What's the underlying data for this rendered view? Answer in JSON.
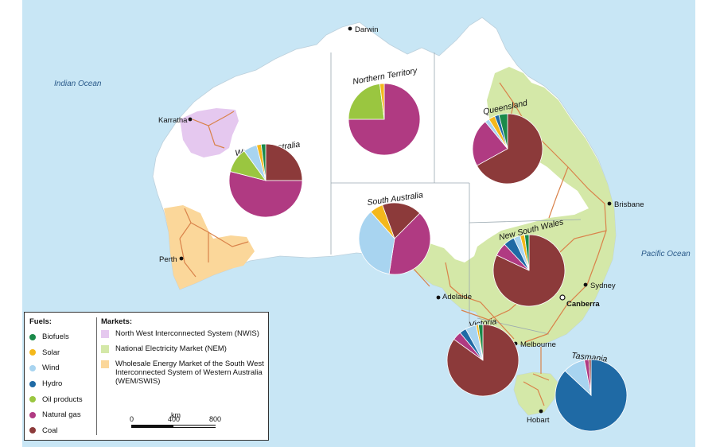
{
  "oceans": {
    "indian": "Indian Ocean",
    "pacific": "Pacific Ocean"
  },
  "cities": {
    "darwin": "Darwin",
    "karratha": "Karratha",
    "perth": "Perth",
    "adelaide": "Adelaide",
    "melbourne": "Melbourne",
    "hobart": "Hobart",
    "sydney": "Sydney",
    "canberra": "Canberra",
    "brisbane": "Brisbane"
  },
  "regions": {
    "wa": "Western Australia",
    "nt": "Northern Territory",
    "qld": "Queensland",
    "sa": "South Australia",
    "nsw": "New South Wales",
    "vic": "Victoria",
    "tas": "Tasmania"
  },
  "colors": {
    "ocean": "#c8e6f5",
    "land": "#ffffff",
    "nem": "#d4e8a8",
    "nwis": "#e5c8ef",
    "wem": "#fbd79a",
    "lines": "#d9824a"
  },
  "legend": {
    "fuels_title": "Fuels:",
    "markets_title": "Markets:",
    "fuels": [
      {
        "label": "Biofuels",
        "color": "#1a8a4a"
      },
      {
        "label": "Solar",
        "color": "#f4b81c"
      },
      {
        "label": "Wind",
        "color": "#a8d4f0"
      },
      {
        "label": "Hydro",
        "color": "#1f6aa5"
      },
      {
        "label": "Oil products",
        "color": "#9ac640"
      },
      {
        "label": "Natural gas",
        "color": "#b03a82"
      },
      {
        "label": "Coal",
        "color": "#8c3a3a"
      }
    ],
    "markets": [
      {
        "label": "North West Interconnected System (NWIS)",
        "color": "#e5c8ef"
      },
      {
        "label": "National Electricity Market (NEM)",
        "color": "#d4e8a8"
      },
      {
        "label": "Wholesale Energy Market of the South West Interconnected System of Western Australia (WEM/SWIS)",
        "color": "#fbd79a"
      }
    ],
    "scale": {
      "unit": "km",
      "ticks": [
        "0",
        "400",
        "800"
      ]
    }
  },
  "chart_data": [
    {
      "type": "pie",
      "title": "Western Australia",
      "categories": [
        "Coal",
        "Natural gas",
        "Oil products",
        "Wind",
        "Solar",
        "Biofuels"
      ],
      "values": [
        25,
        54,
        11,
        6,
        2,
        2
      ]
    },
    {
      "type": "pie",
      "title": "Northern Territory",
      "categories": [
        "Natural gas",
        "Oil products",
        "Solar"
      ],
      "values": [
        75,
        23,
        2
      ]
    },
    {
      "type": "pie",
      "title": "Queensland",
      "categories": [
        "Coal",
        "Natural gas",
        "Wind",
        "Solar",
        "Hydro",
        "Biofuels"
      ],
      "values": [
        67,
        22,
        2,
        3,
        2,
        4
      ]
    },
    {
      "type": "pie",
      "title": "South Australia",
      "categories": [
        "Coal",
        "Natural gas",
        "Wind",
        "Solar"
      ],
      "values": [
        18,
        40,
        36,
        6
      ]
    },
    {
      "type": "pie",
      "title": "New South Wales",
      "categories": [
        "Coal",
        "Natural gas",
        "Hydro",
        "Wind",
        "Solar",
        "Biofuels"
      ],
      "values": [
        82,
        6,
        5,
        3,
        2,
        2
      ]
    },
    {
      "type": "pie",
      "title": "Victoria",
      "categories": [
        "Coal",
        "Natural gas",
        "Hydro",
        "Wind",
        "Solar",
        "Biofuels"
      ],
      "values": [
        85,
        4,
        3,
        5,
        1,
        2
      ]
    },
    {
      "type": "pie",
      "title": "Tasmania",
      "categories": [
        "Hydro",
        "Wind",
        "Natural gas",
        "Coal"
      ],
      "values": [
        87,
        10,
        2,
        1
      ]
    }
  ]
}
